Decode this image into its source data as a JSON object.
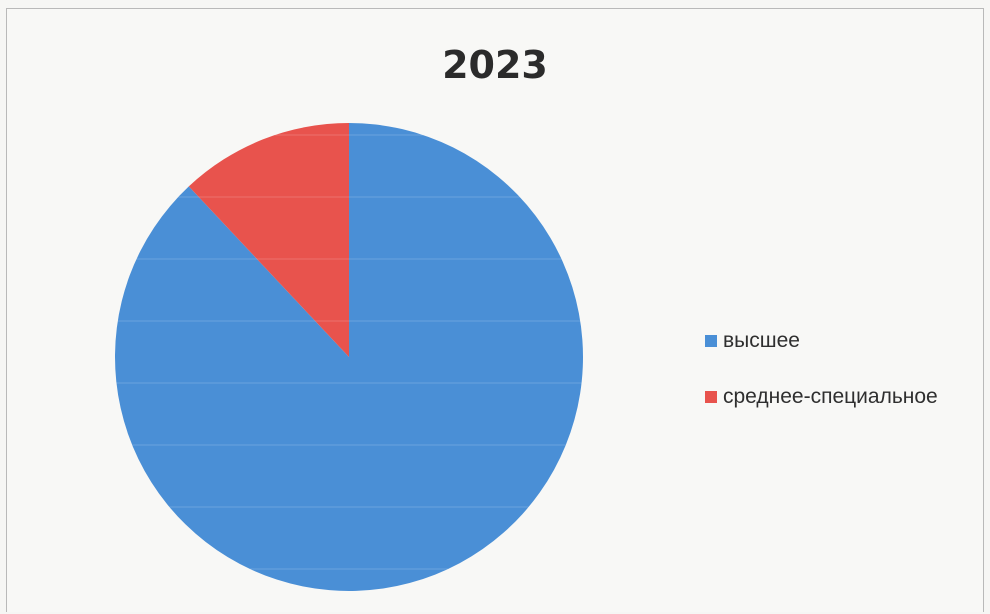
{
  "chart_data": {
    "type": "pie",
    "title": "2023",
    "categories": [
      "высшее",
      "среднее-специальное"
    ],
    "values": [
      88,
      12
    ],
    "colors": [
      "#4a8fd6",
      "#e8534d"
    ],
    "legend_position": "right"
  }
}
